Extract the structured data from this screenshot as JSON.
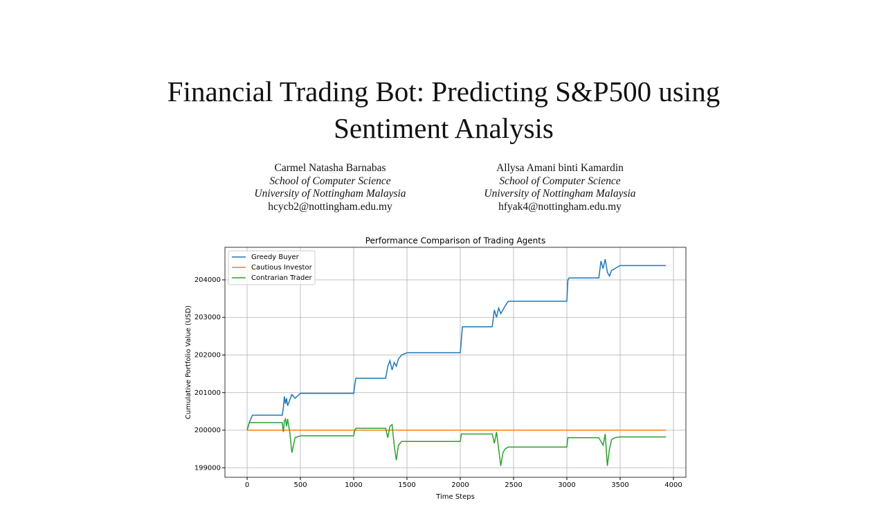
{
  "header": {
    "title": "Financial Trading Bot: Predicting S&P500 using Sentiment Analysis",
    "authors": [
      {
        "name": "Carmel Natasha Barnabas",
        "department": "School of Computer Science",
        "university": "University of Nottingham Malaysia",
        "email": "hcycb2@nottingham.edu.my"
      },
      {
        "name": "Allysa Amani binti Kamardin",
        "department": "School of Computer Science",
        "university": "University of Nottingham Malaysia",
        "email": "hfyak4@nottingham.edu.my"
      }
    ]
  },
  "chart_data": {
    "type": "line",
    "title": "Performance Comparison of Trading Agents",
    "x_label": "Time Steps",
    "y_label": "Cumulative Portfolio Value (USD)",
    "x": [
      0,
      20,
      50,
      100,
      200,
      330,
      340,
      350,
      360,
      370,
      380,
      400,
      420,
      450,
      500,
      550,
      1000,
      1010,
      1020,
      1050,
      1300,
      1320,
      1340,
      1360,
      1380,
      1400,
      1420,
      1450,
      1500,
      1550,
      2000,
      2010,
      2020,
      2050,
      2300,
      2320,
      2340,
      2360,
      2380,
      2400,
      2420,
      2450,
      2500,
      2550,
      3000,
      3010,
      3020,
      3050,
      3300,
      3320,
      3340,
      3360,
      3380,
      3400,
      3420,
      3450,
      3500,
      3550,
      3930
    ],
    "series": [
      {
        "name": "Greedy Buyer",
        "color": "#1f77b4",
        "values": [
          200000,
          200200,
          200400,
          200400,
          200400,
          200400,
          200600,
          200900,
          200700,
          200850,
          200650,
          200800,
          200950,
          200850,
          200980,
          200980,
          200980,
          201200,
          201380,
          201380,
          201380,
          201700,
          201850,
          201600,
          201800,
          201700,
          201900,
          202000,
          202060,
          202060,
          202060,
          202400,
          202750,
          202750,
          202750,
          203200,
          203000,
          203250,
          203100,
          203200,
          203300,
          203430,
          203430,
          203430,
          203430,
          204000,
          204050,
          204050,
          204050,
          204500,
          204300,
          204550,
          204200,
          204100,
          204250,
          204300,
          204380,
          204380,
          204380
        ]
      },
      {
        "name": "Cautious Investor",
        "color": "#ff7f0e",
        "values": [
          200000,
          200000,
          200000,
          200000,
          200000,
          200000,
          200000,
          200000,
          200000,
          200000,
          200000,
          200000,
          200000,
          200000,
          200000,
          200000,
          200000,
          200000,
          200000,
          200000,
          200000,
          200000,
          200000,
          200000,
          200000,
          200000,
          200000,
          200000,
          200000,
          200000,
          200000,
          200000,
          200000,
          200000,
          200000,
          200000,
          200000,
          200000,
          200000,
          200000,
          200000,
          200000,
          200000,
          200000,
          200000,
          200000,
          200000,
          200000,
          200000,
          200000,
          200000,
          200000,
          200000,
          200000,
          200000,
          200000,
          200000,
          200000,
          200000
        ]
      },
      {
        "name": "Contrarian Trader",
        "color": "#2ca02c",
        "values": [
          200000,
          200200,
          200200,
          200200,
          200200,
          200200,
          199950,
          200250,
          200300,
          200100,
          200300,
          199950,
          199400,
          199800,
          199850,
          199850,
          199850,
          200000,
          200050,
          200050,
          200050,
          199800,
          200100,
          200150,
          199600,
          199200,
          199600,
          199700,
          199700,
          199700,
          199700,
          199900,
          199900,
          199900,
          199900,
          199650,
          199950,
          199500,
          199050,
          199400,
          199500,
          199550,
          199550,
          199550,
          199550,
          199800,
          199800,
          199800,
          199800,
          199700,
          199600,
          199900,
          199050,
          199500,
          199750,
          199800,
          199820,
          199820,
          199820
        ]
      }
    ],
    "xlim": [
      -208,
      4117
    ],
    "ylim": [
      198747,
      204866
    ],
    "xticks": [
      0,
      500,
      1000,
      1500,
      2000,
      2500,
      3000,
      3500,
      4000
    ],
    "yticks": [
      199000,
      200000,
      201000,
      202000,
      203000,
      204000
    ],
    "grid": true,
    "legend": "upper left"
  }
}
